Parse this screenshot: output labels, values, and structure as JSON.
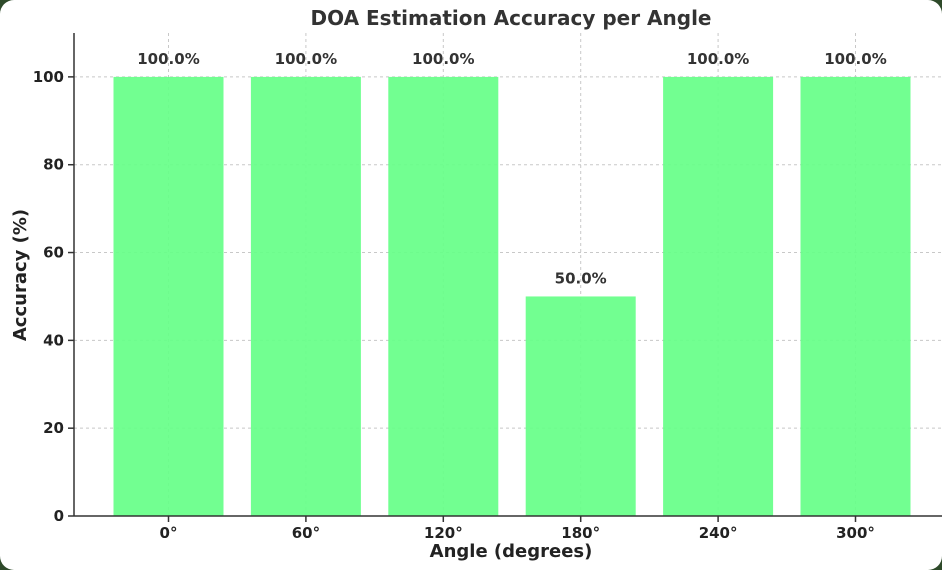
{
  "chart_data": {
    "type": "bar",
    "title": "DOA Estimation Accuracy per Angle",
    "xlabel": "Angle (degrees)",
    "ylabel": "Accuracy (%)",
    "categories": [
      "0°",
      "60°",
      "120°",
      "180°",
      "240°",
      "300°"
    ],
    "values": [
      100,
      100,
      100,
      50,
      100,
      100
    ],
    "data_labels": [
      "100.0%",
      "100.0%",
      "100.0%",
      "50.0%",
      "100.0%",
      "100.0%"
    ],
    "yticks": [
      0,
      20,
      40,
      60,
      80,
      100
    ],
    "ylim": [
      0,
      110
    ],
    "grid": true,
    "bar_color": "#66ff88"
  }
}
